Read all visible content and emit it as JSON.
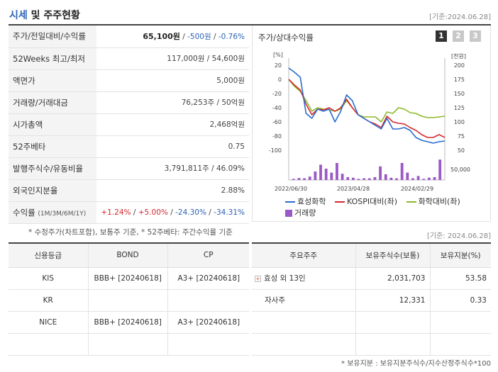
{
  "header": {
    "title_part1": "시세",
    "title_part2": " 및 주주현황",
    "date": "[기준:2024.06.28]"
  },
  "stats": [
    {
      "label": "주가/전일대비/수익률"
    },
    {
      "label": "52Weeks 최고/최저",
      "value": "117,000원 / 54,600원"
    },
    {
      "label": "액면가",
      "value": "5,000원"
    },
    {
      "label": "거래량/거래대금",
      "value": "76,253주 / 50억원"
    },
    {
      "label": "시가총액",
      "value": "2,468억원"
    },
    {
      "label": "52주베타",
      "value": "0.75"
    },
    {
      "label": "발행주식수/유동비율",
      "value": "3,791,811주 / 46.09%"
    },
    {
      "label": "외국인지분율",
      "value": "2.88%"
    },
    {
      "label": "수익률",
      "sub": "(1M/3M/6M/1Y)"
    }
  ],
  "price_row": {
    "price": "65,100원",
    "sep1": " / ",
    "change": "-500원",
    "sep2": " / ",
    "pct": "-0.76%"
  },
  "returns_row": {
    "r1": "+1.24%",
    "r2": "+5.00%",
    "r3": "-24.30%",
    "r4": "-34.31%",
    "sep": "/ "
  },
  "chart_panel": {
    "title": "주가/상대수익률",
    "pages": [
      "1",
      "2",
      "3"
    ],
    "legend": [
      "효성화학",
      "KOSPI대비(좌)",
      "화학대비(좌)",
      "거래량"
    ]
  },
  "chart_data": {
    "type": "line",
    "left_axis_label": "[%]",
    "right_axis_label": "[천원]",
    "left_ticks": [
      "20",
      "0",
      "-20",
      "-40",
      "-60",
      "-80",
      "-100"
    ],
    "right_ticks": [
      "200",
      "175",
      "150",
      "125",
      "100",
      "75",
      "50"
    ],
    "volume_tick": "50,000",
    "x_ticks": [
      "2022/06/30",
      "2023/04/28",
      "2024/02/29"
    ],
    "ylim_left": [
      -100,
      20
    ],
    "ylim_right": [
      50,
      200
    ],
    "series": [
      {
        "name": "효성화학",
        "color": "#2a6ccf",
        "axis": "left",
        "values": [
          16,
          10,
          3,
          -48,
          -55,
          -42,
          -45,
          -42,
          -60,
          -45,
          -22,
          -30,
          -50,
          -55,
          -60,
          -65,
          -70,
          -55,
          -70,
          -70,
          -68,
          -72,
          -82,
          -86,
          -88,
          -90,
          -88,
          -87
        ]
      },
      {
        "name": "KOSPI대비(좌)",
        "color": "#d7282f",
        "axis": "left",
        "values": [
          0,
          -8,
          -15,
          -35,
          -50,
          -42,
          -43,
          -40,
          -45,
          -40,
          -28,
          -40,
          -50,
          -55,
          -60,
          -63,
          -68,
          -52,
          -60,
          -62,
          -63,
          -68,
          -72,
          -78,
          -82,
          -82,
          -78,
          -82
        ]
      },
      {
        "name": "화학대비(좌)",
        "color": "#8db92c",
        "axis": "left",
        "values": [
          0,
          -10,
          -17,
          -30,
          -45,
          -40,
          -42,
          -43,
          -45,
          -42,
          -30,
          -40,
          -50,
          -53,
          -53,
          -53,
          -60,
          -46,
          -48,
          -40,
          -42,
          -47,
          -48,
          -52,
          -54,
          -54,
          -53,
          -52
        ]
      }
    ],
    "volume": [
      2000,
      3500,
      3000,
      6000,
      15000,
      27000,
      20000,
      13000,
      30000,
      11000,
      5000,
      4000,
      2000,
      3000,
      3000,
      5000,
      24000,
      10000,
      4000,
      3000,
      30000,
      13000,
      3000,
      7000,
      2000,
      4000,
      5000,
      36000
    ]
  },
  "note1": "* 수정주가(차트포함), 보통주 기준, * 52주베타: 주간수익률 기준",
  "date2": "[기준: 2024.06.28]",
  "credit": {
    "headers": [
      "신용등급",
      "BOND",
      "CP"
    ],
    "rows": [
      [
        "KIS",
        "BBB+ [20240618]",
        "A3+ [20240618]"
      ],
      [
        "KR",
        "",
        ""
      ],
      [
        "NICE",
        "BBB+ [20240618]",
        "A3+ [20240618]"
      ],
      [
        "",
        "",
        ""
      ]
    ]
  },
  "holders": {
    "headers": [
      "주요주주",
      "보유주식수(보통)",
      "보유지분(%)"
    ],
    "rows": [
      [
        "효성 외 13인",
        "2,031,703",
        "53.58"
      ],
      [
        "자사주",
        "12,331",
        "0.33"
      ],
      [
        "",
        "",
        ""
      ],
      [
        "",
        "",
        ""
      ]
    ]
  },
  "note2": "* 보유지분 : 보유지분주식수/지수산정주식수*100"
}
